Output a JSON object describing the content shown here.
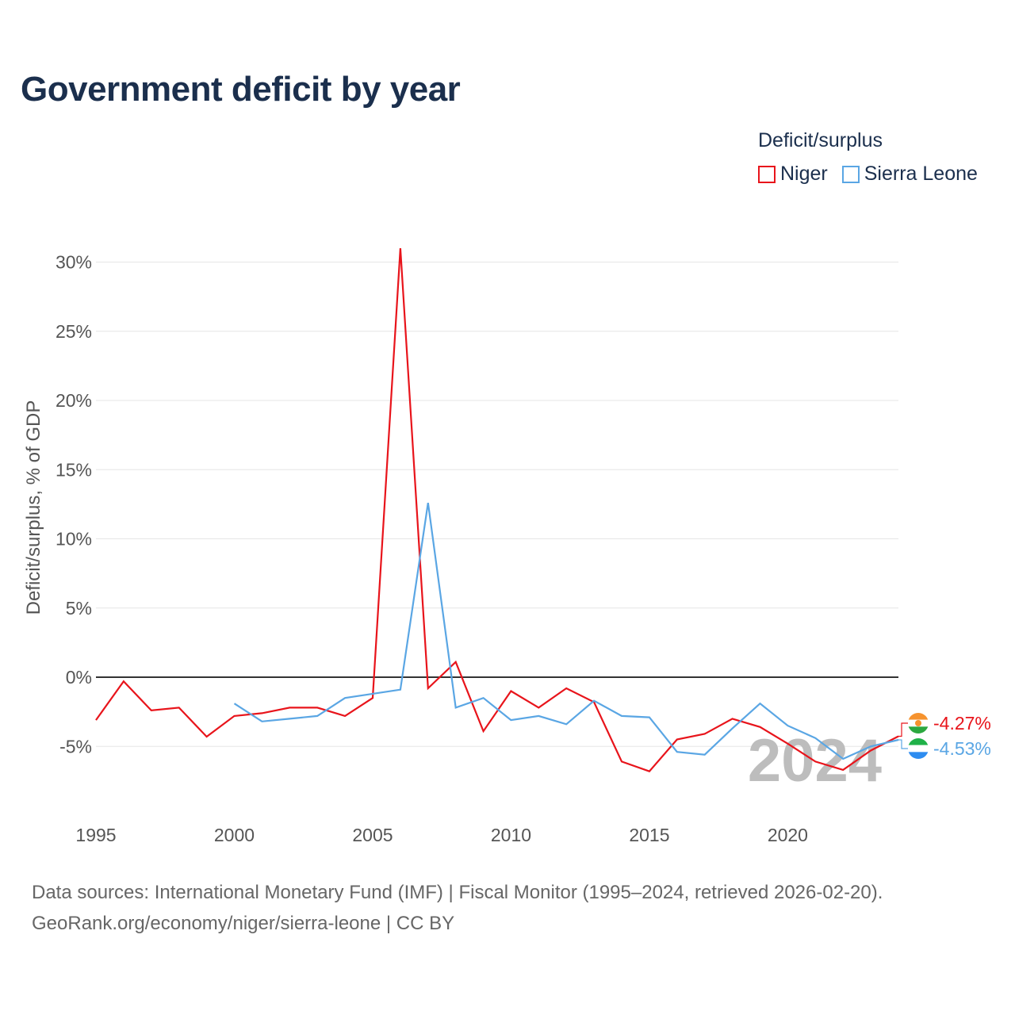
{
  "chart_data": {
    "type": "line",
    "title": "Government deficit by year",
    "ylabel": "Deficit/surplus, % of GDP",
    "xlabel": "",
    "xlim": [
      1995,
      2024
    ],
    "ylim": [
      -10,
      32
    ],
    "yticks": [
      -5,
      0,
      5,
      10,
      15,
      20,
      25,
      30
    ],
    "ytick_labels": [
      "-5%",
      "0%",
      "5%",
      "10%",
      "15%",
      "20%",
      "25%",
      "30%"
    ],
    "xticks": [
      1995,
      2000,
      2005,
      2010,
      2015,
      2020
    ],
    "xtick_labels": [
      "1995",
      "2000",
      "2005",
      "2010",
      "2015",
      "2020"
    ],
    "legend_title": "Deficit/surplus",
    "legend_position": "top-right",
    "current_year": "2024",
    "series": [
      {
        "name": "Niger",
        "color": "#e8141b",
        "x": [
          1995,
          1996,
          1997,
          1998,
          1999,
          2000,
          2001,
          2002,
          2003,
          2004,
          2005,
          2006,
          2007,
          2008,
          2009,
          2010,
          2011,
          2012,
          2013,
          2014,
          2015,
          2016,
          2017,
          2018,
          2019,
          2020,
          2021,
          2022,
          2023,
          2024
        ],
        "values": [
          -3.1,
          -0.3,
          -2.4,
          -2.2,
          -4.3,
          -2.8,
          -2.6,
          -2.2,
          -2.2,
          -2.8,
          -1.5,
          31.0,
          -0.8,
          1.1,
          -3.9,
          -1.0,
          -2.2,
          -0.8,
          -1.8,
          -6.1,
          -6.8,
          -4.5,
          -4.1,
          -3.0,
          -3.6,
          -4.8,
          -6.1,
          -6.7,
          -5.3,
          -4.27
        ],
        "end_label": "-4.27%",
        "flag_icon": "niger-flag-icon"
      },
      {
        "name": "Sierra Leone",
        "color": "#5aa6e4",
        "x": [
          2000,
          2001,
          2002,
          2003,
          2004,
          2005,
          2006,
          2007,
          2008,
          2009,
          2010,
          2011,
          2012,
          2013,
          2014,
          2015,
          2016,
          2017,
          2018,
          2019,
          2020,
          2021,
          2022,
          2023,
          2024
        ],
        "values": [
          -1.9,
          -3.2,
          -3.0,
          -2.8,
          -1.5,
          -1.2,
          -0.9,
          12.6,
          -2.2,
          -1.5,
          -3.1,
          -2.8,
          -3.4,
          -1.7,
          -2.8,
          -2.9,
          -5.4,
          -5.6,
          -3.7,
          -1.9,
          -3.5,
          -4.4,
          -5.9,
          -5.0,
          -4.53
        ],
        "end_label": "-4.53%",
        "flag_icon": "sierra-leone-flag-icon"
      }
    ]
  },
  "footer": {
    "source_line": "Data sources: International Monetary Fund (IMF) | Fiscal Monitor (1995–2024, retrieved 2026-02-20).",
    "credit_line": "GeoRank.org/economy/niger/sierra-leone | CC BY"
  },
  "colors": {
    "title": "#1b2f4d",
    "grid": "#e6e6e6",
    "zero_line": "#333333",
    "niger_flag": [
      "#f6932e",
      "#ffffff",
      "#2ba83f"
    ],
    "sierra_leone_flag": [
      "#1fb148",
      "#ffffff",
      "#2d8cf0"
    ]
  }
}
